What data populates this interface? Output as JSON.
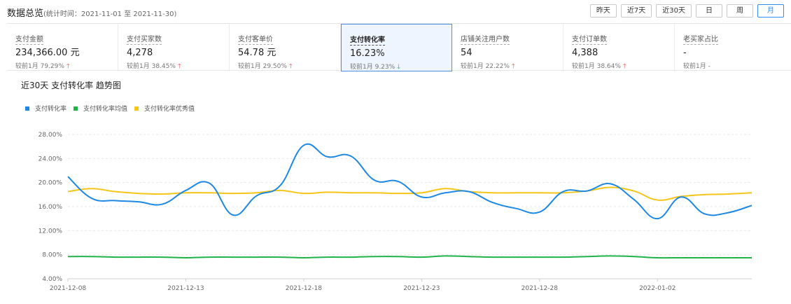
{
  "header": {
    "title": "数据总览",
    "range": "(统计时间：2021-11-01 至 2021-11-30)",
    "buttons": [
      {
        "label": "昨天",
        "active": false
      },
      {
        "label": "近7天",
        "active": false
      },
      {
        "label": "近30天",
        "active": false
      },
      {
        "label": "日",
        "active": false
      },
      {
        "label": "周",
        "active": false
      },
      {
        "label": "月",
        "active": true
      }
    ]
  },
  "cards": [
    {
      "label": "支付金额",
      "value": "234,366.00 元",
      "compare": "较前1月  79.29%",
      "trend": "up"
    },
    {
      "label": "支付买家数",
      "value": "4,278",
      "compare": "较前1月  38.45%",
      "trend": "up"
    },
    {
      "label": "支付客单价",
      "value": "54.78 元",
      "compare": "较前1月  29.50%",
      "trend": "up"
    },
    {
      "label": "支付转化率",
      "value": "16.23%",
      "compare": "较前1月  9.23%",
      "trend": "down",
      "active": true
    },
    {
      "label": "店铺关注用户数",
      "value": "54",
      "compare": "较前1月  22.22%",
      "trend": "up"
    },
    {
      "label": "支付订单数",
      "value": "4,388",
      "compare": "较前1月  38.64%",
      "trend": "up"
    },
    {
      "label": "老买家占比",
      "value": "-",
      "compare": "较前1月  -",
      "trend": "none"
    }
  ],
  "chart_title": "近30天 支付转化率 趋势图",
  "colors": {
    "blue": "#1e88e5",
    "green": "#1fb34a",
    "yellow": "#f5c518"
  },
  "chart_data": {
    "type": "line",
    "x": [
      "2021-12-08",
      "2021-12-09",
      "2021-12-10",
      "2021-12-11",
      "2021-12-12",
      "2021-12-13",
      "2021-12-14",
      "2021-12-15",
      "2021-12-16",
      "2021-12-17",
      "2021-12-18",
      "2021-12-19",
      "2021-12-20",
      "2021-12-21",
      "2021-12-22",
      "2021-12-23",
      "2021-12-24",
      "2021-12-25",
      "2021-12-26",
      "2021-12-27",
      "2021-12-28",
      "2021-12-29",
      "2021-12-30",
      "2021-12-31",
      "2022-01-01",
      "2022-01-02",
      "2022-01-03",
      "2022-01-04",
      "2022-01-05",
      "2022-01-06"
    ],
    "xticks": [
      "2021-12-08",
      "2021-12-13",
      "2021-12-18",
      "2021-12-23",
      "2021-12-28",
      "2022-01-02"
    ],
    "yticks": [
      "4.00%",
      "8.00%",
      "12.00%",
      "16.00%",
      "20.00%",
      "24.00%",
      "28.00%"
    ],
    "ylim": [
      4,
      30
    ],
    "series": [
      {
        "name": "支付转化率",
        "color": "#1e88e5",
        "values": [
          21.0,
          17.4,
          17.0,
          16.8,
          16.4,
          18.7,
          19.9,
          14.6,
          17.8,
          19.5,
          26.2,
          24.3,
          24.4,
          20.4,
          20.2,
          17.6,
          18.3,
          18.5,
          16.7,
          15.7,
          15.1,
          18.5,
          18.6,
          19.8,
          17.2,
          14.0,
          17.6,
          14.8,
          15.0,
          16.2
        ]
      },
      {
        "name": "支付转化率均值",
        "color": "#1fb34a",
        "values": [
          7.7,
          7.7,
          7.6,
          7.6,
          7.6,
          7.5,
          7.6,
          7.6,
          7.6,
          7.6,
          7.5,
          7.6,
          7.6,
          7.7,
          7.7,
          7.6,
          7.8,
          7.7,
          7.6,
          7.6,
          7.6,
          7.6,
          7.7,
          7.8,
          7.7,
          7.5,
          7.5,
          7.5,
          7.5,
          7.5
        ]
      },
      {
        "name": "支付转化率优秀值",
        "color": "#f5c518",
        "values": [
          18.5,
          19.0,
          18.5,
          18.2,
          18.1,
          18.3,
          18.3,
          18.2,
          18.3,
          18.7,
          18.2,
          18.4,
          18.3,
          18.3,
          18.2,
          18.3,
          19.0,
          18.5,
          18.3,
          18.3,
          18.3,
          18.3,
          18.6,
          19.2,
          18.6,
          17.1,
          17.7,
          18.0,
          18.1,
          18.3
        ]
      }
    ]
  }
}
